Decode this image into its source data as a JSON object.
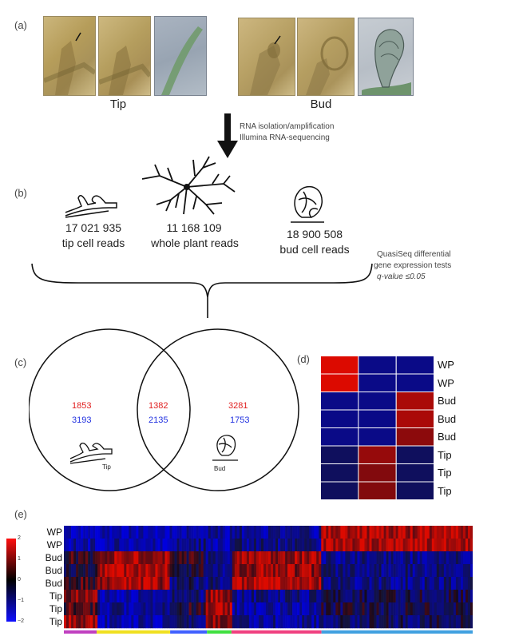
{
  "panels": {
    "a": {
      "label": "(a)",
      "captions": {
        "tip": "Tip",
        "bud": "Bud"
      }
    },
    "arrow_text": [
      "RNA isolation/amplification",
      "Illumina RNA-sequencing"
    ],
    "b": {
      "label": "(b)",
      "samples": [
        {
          "count": "17 021 935",
          "name": "tip cell reads"
        },
        {
          "count": "11 168 109",
          "name": "whole plant reads"
        },
        {
          "count": "18 900 508",
          "name": "bud cell reads"
        }
      ],
      "note": [
        "QuasiSeq differential",
        "gene expression tests",
        "q-value ≤0.05"
      ]
    },
    "c": {
      "label": "(c)",
      "left": {
        "red": "1853",
        "blue": "3193",
        "icon_label": "Tip"
      },
      "middle": {
        "red": "1382",
        "blue": "2135"
      },
      "right": {
        "red": "3281",
        "blue": "1753",
        "icon_label": "Bud"
      }
    },
    "d": {
      "label": "(d)",
      "rows": [
        "WP",
        "WP",
        "Bud",
        "Bud",
        "Bud",
        "Tip",
        "Tip",
        "Tip"
      ],
      "grid": [
        [
          2,
          -1,
          -1
        ],
        [
          2,
          -1,
          -1
        ],
        [
          -1,
          -1,
          1.5
        ],
        [
          -1,
          -1,
          1.5
        ],
        [
          -1,
          -1,
          1.2
        ],
        [
          -0.5,
          1.3,
          -0.5
        ],
        [
          -0.5,
          1.1,
          -0.5
        ],
        [
          -0.5,
          1.1,
          -0.5
        ]
      ]
    },
    "e": {
      "label": "(e)",
      "rows": [
        "WP",
        "WP",
        "Bud",
        "Bud",
        "Bud",
        "Tip",
        "Tip",
        "Tip"
      ],
      "scale_ticks": [
        "2",
        "1",
        "0",
        "−1",
        "−2"
      ],
      "cluster_bar": [
        {
          "color": "#c040c0",
          "frac": 0.08
        },
        {
          "color": "#f0e020",
          "frac": 0.18
        },
        {
          "color": "#4060ff",
          "frac": 0.09
        },
        {
          "color": "#40e040",
          "frac": 0.06
        },
        {
          "color": "#f04080",
          "frac": 0.22
        },
        {
          "color": "#40a0e0",
          "frac": 0.37
        }
      ],
      "blocks": [
        {
          "from": 0.0,
          "to": 0.08,
          "row_levels": [
            -1,
            -1,
            0.2,
            -0.2,
            0.3,
            0.8,
            0.4,
            0.9
          ]
        },
        {
          "from": 0.08,
          "to": 0.26,
          "row_levels": [
            -1,
            -1,
            1,
            1.2,
            1,
            -1,
            -0.8,
            -1
          ]
        },
        {
          "from": 0.26,
          "to": 0.35,
          "row_levels": [
            -0.8,
            -0.7,
            0.2,
            0,
            -0.5,
            -0.6,
            0.1,
            -0.5
          ]
        },
        {
          "from": 0.35,
          "to": 0.41,
          "row_levels": [
            -0.9,
            -1,
            -0.6,
            -0.7,
            -0.6,
            0.9,
            1.0,
            0.8
          ]
        },
        {
          "from": 0.41,
          "to": 0.63,
          "row_levels": [
            -0.8,
            -0.6,
            1.0,
            0.9,
            1.1,
            -0.7,
            -0.9,
            -0.8
          ]
        },
        {
          "from": 0.63,
          "to": 1.0,
          "row_levels": [
            1.1,
            1.2,
            -0.7,
            -0.6,
            -0.7,
            -0.3,
            -0.2,
            -0.4
          ]
        }
      ]
    }
  }
}
